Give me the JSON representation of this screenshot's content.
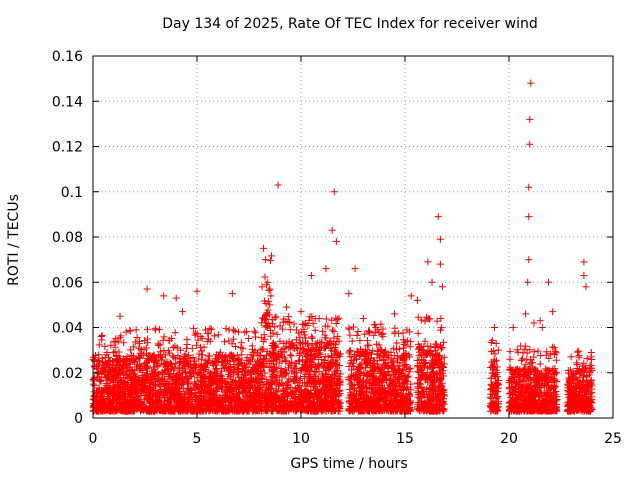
{
  "chart_data": {
    "type": "scatter",
    "title": "Day 134 of 2025, Rate Of TEC Index for receiver wind",
    "xlabel": "GPS time / hours",
    "ylabel": "ROTI / TECUs",
    "xlim": [
      0,
      25
    ],
    "ylim": [
      0,
      0.16
    ],
    "xticks": [
      "0",
      "5",
      "10",
      "15",
      "20",
      "25"
    ],
    "yticks": [
      "0",
      "0.02",
      "0.04",
      "0.06",
      "0.08",
      "0.1",
      "0.12",
      "0.14",
      "0.16"
    ],
    "grid": true,
    "marker": "+",
    "marker_color": "#ff0000",
    "series": [
      {
        "points": [
          [
            0.2,
            0.018
          ],
          [
            0.4,
            0.036
          ],
          [
            1.3,
            0.045
          ],
          [
            2.6,
            0.057
          ],
          [
            3.4,
            0.054
          ],
          [
            4.0,
            0.053
          ],
          [
            4.3,
            0.047
          ],
          [
            5.0,
            0.056
          ],
          [
            6.7,
            0.055
          ],
          [
            7.0,
            0.038
          ],
          [
            8.2,
            0.075
          ],
          [
            8.3,
            0.07
          ],
          [
            8.4,
            0.06
          ],
          [
            8.5,
            0.05
          ],
          [
            8.9,
            0.103
          ],
          [
            9.3,
            0.049
          ],
          [
            10.0,
            0.047
          ],
          [
            10.5,
            0.063
          ],
          [
            11.2,
            0.066
          ],
          [
            11.5,
            0.083
          ],
          [
            11.6,
            0.1
          ],
          [
            11.7,
            0.078
          ],
          [
            12.3,
            0.055
          ],
          [
            12.6,
            0.066
          ],
          [
            13.0,
            0.044
          ],
          [
            13.6,
            0.04
          ],
          [
            14.5,
            0.046
          ],
          [
            15.3,
            0.054
          ],
          [
            15.6,
            0.052
          ],
          [
            16.1,
            0.069
          ],
          [
            16.3,
            0.06
          ],
          [
            16.6,
            0.089
          ],
          [
            16.7,
            0.079
          ],
          [
            16.7,
            0.068
          ],
          [
            16.8,
            0.058
          ],
          [
            19.3,
            0.04
          ],
          [
            20.2,
            0.04
          ],
          [
            20.8,
            0.046
          ],
          [
            20.9,
            0.06
          ],
          [
            20.95,
            0.07
          ],
          [
            20.95,
            0.089
          ],
          [
            20.95,
            0.102
          ],
          [
            21.0,
            0.121
          ],
          [
            21.0,
            0.132
          ],
          [
            21.05,
            0.148
          ],
          [
            21.2,
            0.042
          ],
          [
            21.5,
            0.043
          ],
          [
            21.6,
            0.04
          ],
          [
            21.9,
            0.06
          ],
          [
            22.1,
            0.047
          ],
          [
            23.6,
            0.063
          ],
          [
            23.7,
            0.058
          ],
          [
            23.6,
            0.069
          ],
          [
            23.9,
            0.022
          ]
        ],
        "clusters": [
          {
            "x_start": 0.0,
            "x_end": 8.1,
            "y_min": 0.003,
            "y_typ": 0.028,
            "spike": 0.04
          },
          {
            "x_start": 8.1,
            "x_end": 8.6,
            "y_min": 0.003,
            "y_typ": 0.06,
            "spike": 0.072
          },
          {
            "x_start": 8.6,
            "x_end": 11.9,
            "y_min": 0.003,
            "y_typ": 0.034,
            "spike": 0.045
          },
          {
            "x_start": 12.3,
            "x_end": 15.3,
            "y_min": 0.003,
            "y_typ": 0.03,
            "spike": 0.042
          },
          {
            "x_start": 15.6,
            "x_end": 16.9,
            "y_min": 0.003,
            "y_typ": 0.032,
            "spike": 0.046
          },
          {
            "x_start": 19.1,
            "x_end": 19.5,
            "y_min": 0.003,
            "y_typ": 0.025,
            "spike": 0.035
          },
          {
            "x_start": 20.0,
            "x_end": 22.3,
            "y_min": 0.003,
            "y_typ": 0.022,
            "spike": 0.032
          },
          {
            "x_start": 22.8,
            "x_end": 24.0,
            "y_min": 0.003,
            "y_typ": 0.022,
            "spike": 0.03
          }
        ]
      }
    ]
  }
}
